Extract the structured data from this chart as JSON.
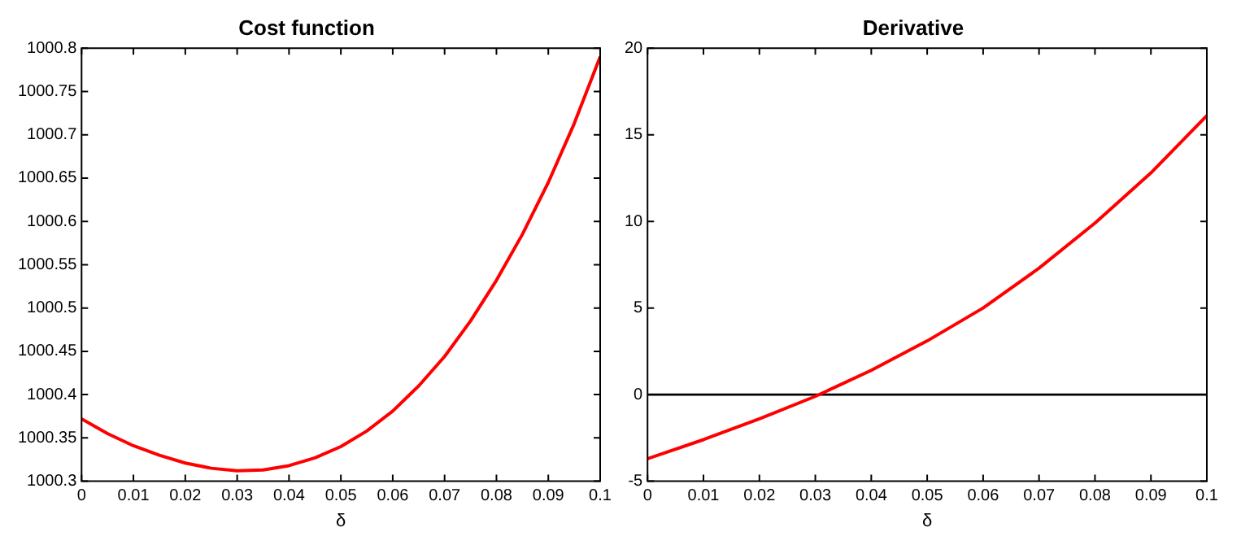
{
  "chart_data": [
    {
      "type": "line",
      "title": "Cost function",
      "xlabel": "δ",
      "x": [
        0,
        0.005,
        0.01,
        0.015,
        0.02,
        0.025,
        0.03,
        0.035,
        0.04,
        0.045,
        0.05,
        0.055,
        0.06,
        0.065,
        0.07,
        0.075,
        0.08,
        0.085,
        0.09,
        0.095,
        0.1
      ],
      "series": [
        {
          "color": "#ff0000",
          "values": [
            1000.372,
            1000.355,
            1000.341,
            1000.33,
            1000.321,
            1000.315,
            1000.312,
            1000.313,
            1000.318,
            1000.327,
            1000.34,
            1000.358,
            1000.381,
            1000.41,
            1000.444,
            1000.485,
            1000.532,
            1000.585,
            1000.645,
            1000.713,
            1000.79
          ]
        }
      ],
      "xlim": [
        0,
        0.1
      ],
      "xticks": [
        0,
        0.01,
        0.02,
        0.03,
        0.04,
        0.05,
        0.06,
        0.07,
        0.08,
        0.09,
        0.1
      ],
      "ylim": [
        1000.3,
        1000.8
      ],
      "yticks": [
        1000.3,
        1000.35,
        1000.4,
        1000.45,
        1000.5,
        1000.55,
        1000.6,
        1000.65,
        1000.7,
        1000.75,
        1000.8
      ],
      "grid": false,
      "legend": false,
      "marker": "none",
      "line_style": "solid"
    },
    {
      "type": "line",
      "title": "Derivative",
      "xlabel": "δ",
      "x": [
        0,
        0.01,
        0.02,
        0.03,
        0.04,
        0.05,
        0.06,
        0.07,
        0.08,
        0.09,
        0.1
      ],
      "series": [
        {
          "color": "#ff0000",
          "values": [
            -3.7,
            -2.6,
            -1.4,
            -0.1,
            1.4,
            3.1,
            5.0,
            7.3,
            9.9,
            12.8,
            16.1
          ]
        }
      ],
      "xlim": [
        0,
        0.1
      ],
      "xticks": [
        0,
        0.01,
        0.02,
        0.03,
        0.04,
        0.05,
        0.06,
        0.07,
        0.08,
        0.09,
        0.1
      ],
      "ylim": [
        -5,
        20
      ],
      "yticks": [
        -5,
        0,
        5,
        10,
        15,
        20
      ],
      "ref_lines": [
        {
          "axis": "y",
          "value": 0,
          "color": "#000000",
          "line_style": "solid"
        }
      ],
      "grid": false,
      "legend": false,
      "marker": "none",
      "line_style": "solid"
    }
  ]
}
